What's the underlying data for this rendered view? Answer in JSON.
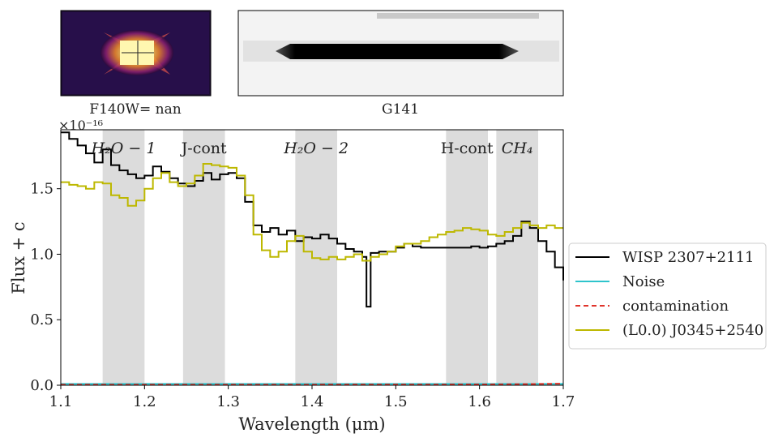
{
  "thumbnails": {
    "direct_label": "F140W= nan",
    "spectrum_label": "G141"
  },
  "chart_data": {
    "type": "line",
    "xlabel": "Wavelength (μm)",
    "ylabel": "Flux + c",
    "y_scale_label": "×10⁻¹⁶",
    "xlim": [
      1.1,
      1.7
    ],
    "ylim": [
      0.0,
      1.95
    ],
    "xticks": [
      1.1,
      1.2,
      1.3,
      1.4,
      1.5,
      1.6,
      1.7
    ],
    "yticks": [
      0.0,
      0.5,
      1.0,
      1.5
    ],
    "xtick_labels": [
      "1.1",
      "1.2",
      "1.3",
      "1.4",
      "1.5",
      "1.6",
      "1.7"
    ],
    "ytick_labels": [
      "0.0",
      "0.5",
      "1.0",
      "1.5"
    ],
    "grid": false,
    "legend_position": "right",
    "bands": [
      {
        "label": "H₂O − 1",
        "range": [
          1.15,
          1.2
        ]
      },
      {
        "label": "J-cont",
        "range": [
          1.246,
          1.296
        ]
      },
      {
        "label": "H₂O − 2",
        "range": [
          1.38,
          1.43
        ]
      },
      {
        "label": "H-cont",
        "range": [
          1.56,
          1.61
        ]
      },
      {
        "label": "CH₄",
        "range": [
          1.62,
          1.67
        ]
      }
    ],
    "band_color": "#dcdcdc",
    "series": [
      {
        "name": "WISP 2307+2111",
        "color": "#000000",
        "style": "step",
        "x": [
          1.1,
          1.11,
          1.12,
          1.13,
          1.14,
          1.15,
          1.16,
          1.17,
          1.18,
          1.19,
          1.2,
          1.21,
          1.22,
          1.23,
          1.24,
          1.25,
          1.26,
          1.27,
          1.28,
          1.29,
          1.3,
          1.31,
          1.32,
          1.33,
          1.34,
          1.35,
          1.36,
          1.37,
          1.38,
          1.39,
          1.4,
          1.41,
          1.42,
          1.43,
          1.44,
          1.45,
          1.46,
          1.465,
          1.47,
          1.48,
          1.49,
          1.5,
          1.51,
          1.52,
          1.53,
          1.54,
          1.55,
          1.56,
          1.57,
          1.58,
          1.59,
          1.6,
          1.61,
          1.62,
          1.63,
          1.64,
          1.65,
          1.66,
          1.67,
          1.68,
          1.69,
          1.7
        ],
        "y": [
          1.93,
          1.88,
          1.83,
          1.77,
          1.7,
          1.8,
          1.68,
          1.64,
          1.61,
          1.58,
          1.6,
          1.67,
          1.63,
          1.58,
          1.54,
          1.52,
          1.56,
          1.62,
          1.57,
          1.61,
          1.62,
          1.58,
          1.4,
          1.22,
          1.17,
          1.2,
          1.15,
          1.18,
          1.1,
          1.13,
          1.12,
          1.15,
          1.12,
          1.08,
          1.04,
          1.02,
          0.98,
          0.6,
          1.01,
          1.02,
          1.02,
          1.05,
          1.08,
          1.06,
          1.05,
          1.05,
          1.05,
          1.05,
          1.05,
          1.05,
          1.06,
          1.05,
          1.06,
          1.08,
          1.1,
          1.14,
          1.25,
          1.2,
          1.1,
          1.02,
          0.9,
          0.8
        ]
      },
      {
        "name": "Noise",
        "color": "#2ec4cc",
        "style": "line",
        "x": [
          1.1,
          1.7
        ],
        "y": [
          0.01,
          0.01
        ]
      },
      {
        "name": "contamination",
        "color": "#e0342b",
        "style": "dashed",
        "x": [
          1.1,
          1.4,
          1.6,
          1.65,
          1.7
        ],
        "y": [
          0.005,
          0.005,
          0.006,
          0.008,
          0.012
        ]
      },
      {
        "name": "(L0.0) J0345+2540",
        "color": "#bdb800",
        "style": "step",
        "x": [
          1.1,
          1.11,
          1.12,
          1.13,
          1.14,
          1.15,
          1.16,
          1.17,
          1.18,
          1.19,
          1.2,
          1.21,
          1.22,
          1.23,
          1.24,
          1.25,
          1.26,
          1.27,
          1.28,
          1.29,
          1.3,
          1.31,
          1.32,
          1.33,
          1.34,
          1.35,
          1.36,
          1.37,
          1.38,
          1.39,
          1.4,
          1.41,
          1.42,
          1.43,
          1.44,
          1.45,
          1.46,
          1.47,
          1.48,
          1.49,
          1.5,
          1.51,
          1.52,
          1.53,
          1.54,
          1.55,
          1.56,
          1.57,
          1.58,
          1.59,
          1.6,
          1.61,
          1.62,
          1.63,
          1.64,
          1.65,
          1.66,
          1.67,
          1.68,
          1.69,
          1.7
        ],
        "y": [
          1.55,
          1.53,
          1.52,
          1.5,
          1.55,
          1.54,
          1.45,
          1.43,
          1.37,
          1.41,
          1.5,
          1.58,
          1.62,
          1.55,
          1.52,
          1.54,
          1.6,
          1.69,
          1.68,
          1.67,
          1.66,
          1.6,
          1.45,
          1.15,
          1.03,
          0.98,
          1.02,
          1.1,
          1.14,
          1.02,
          0.97,
          0.96,
          0.98,
          0.96,
          0.98,
          1.0,
          0.95,
          0.98,
          1.0,
          1.02,
          1.06,
          1.08,
          1.08,
          1.1,
          1.13,
          1.15,
          1.17,
          1.18,
          1.2,
          1.19,
          1.18,
          1.15,
          1.14,
          1.17,
          1.2,
          1.24,
          1.22,
          1.2,
          1.22,
          1.2,
          1.2
        ]
      }
    ]
  }
}
